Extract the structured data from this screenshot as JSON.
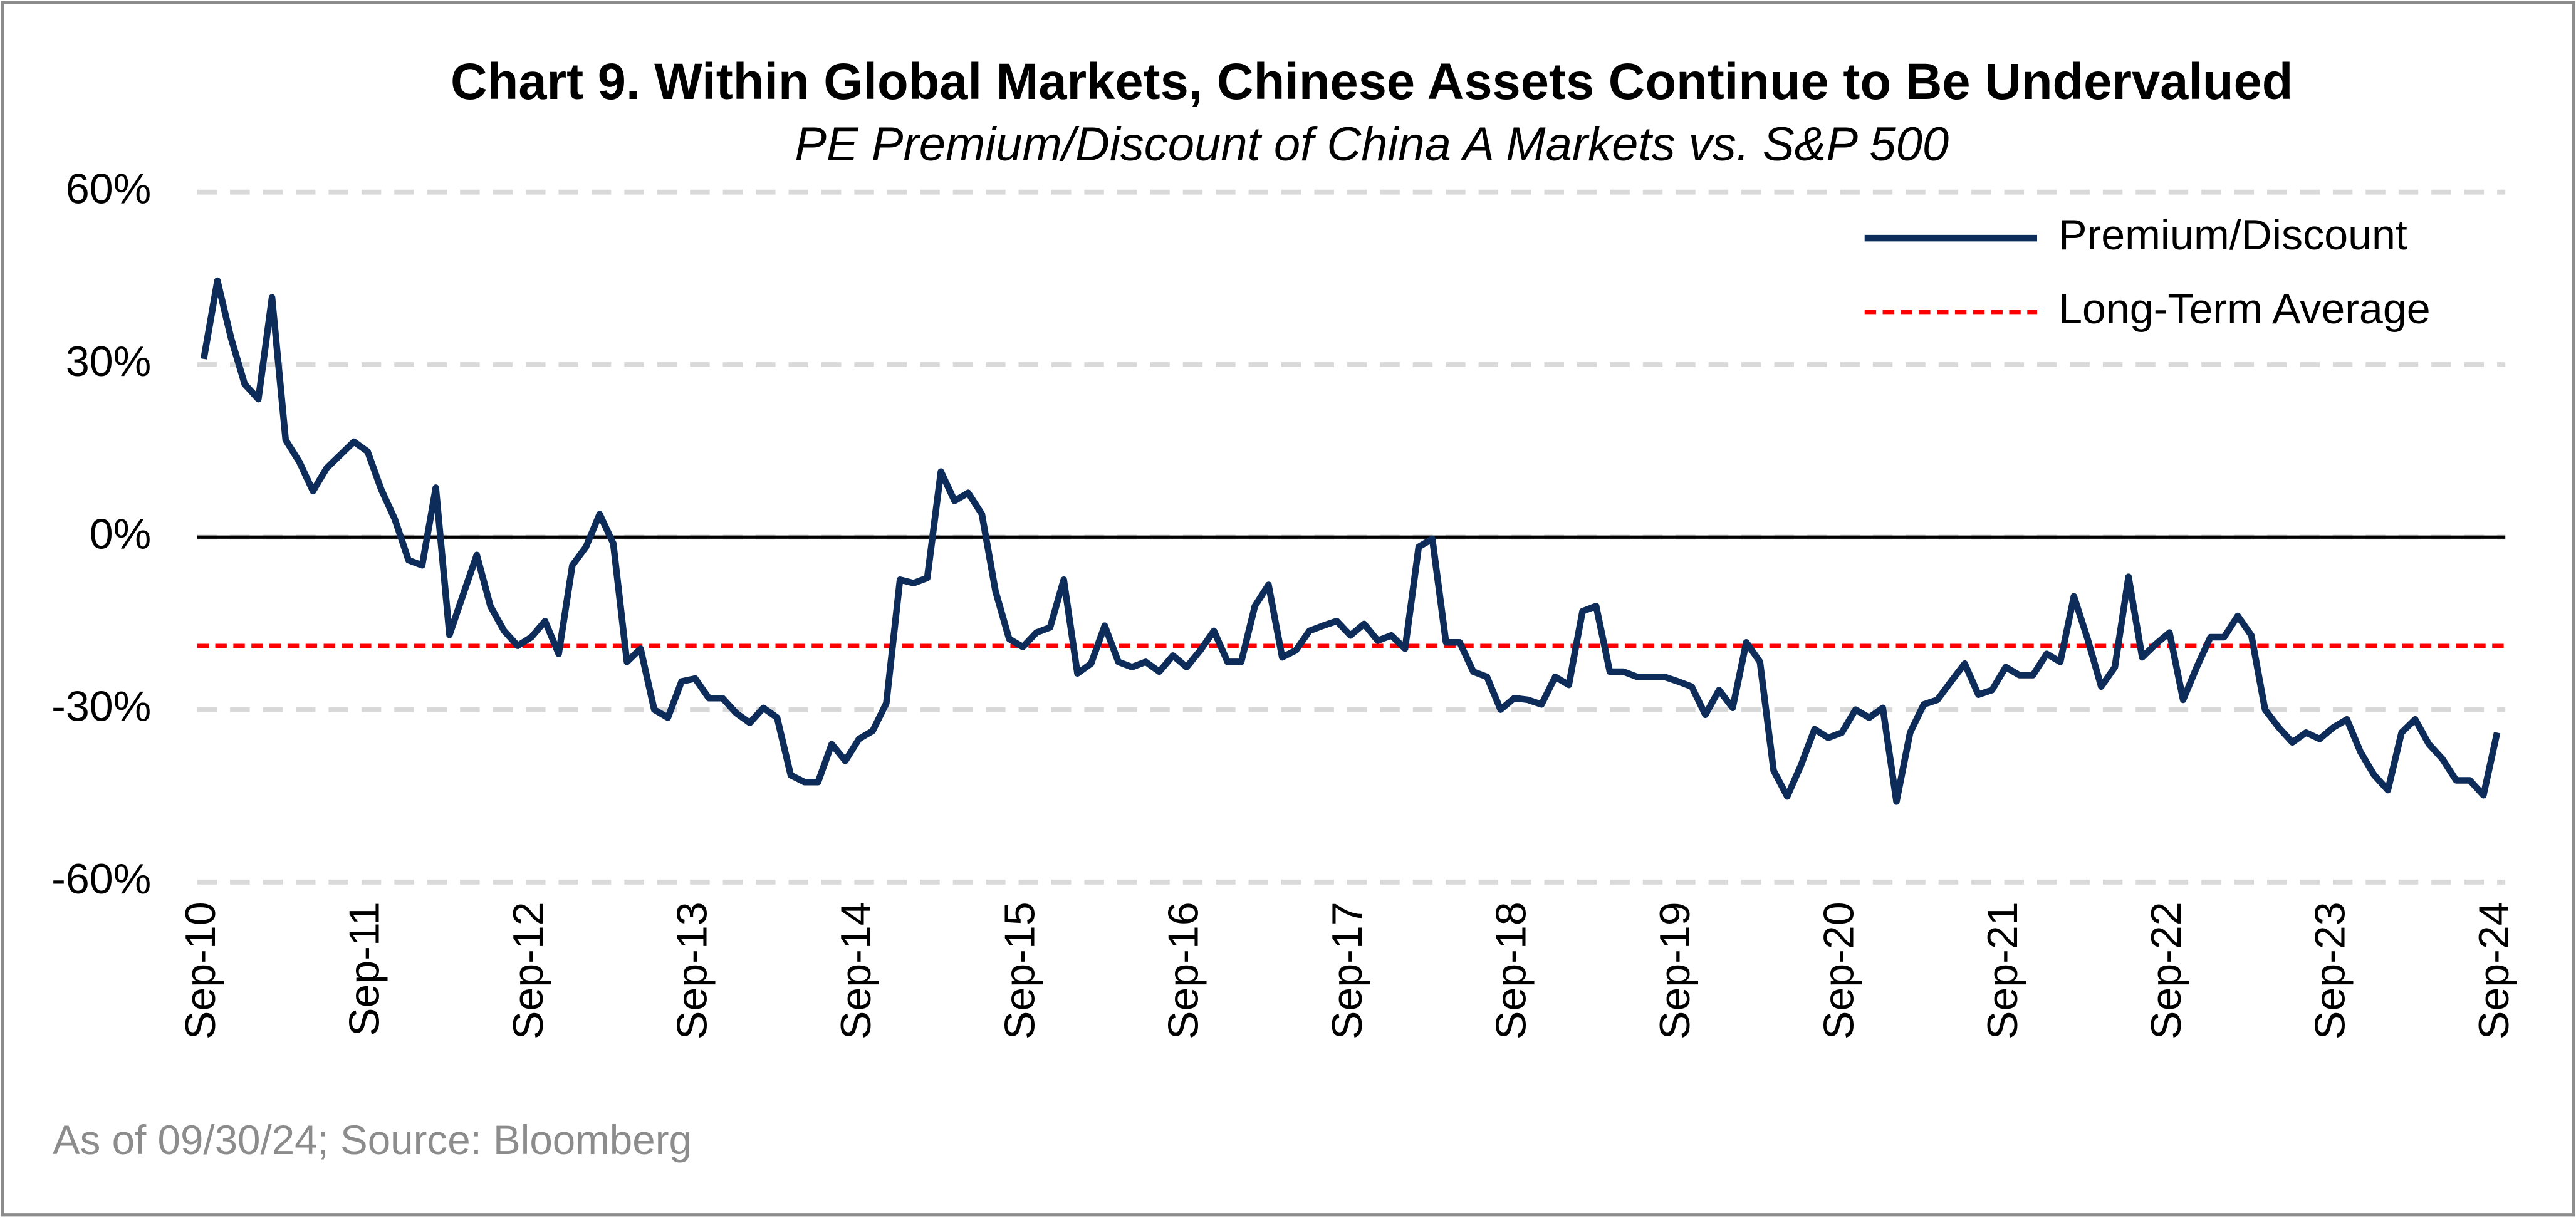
{
  "chart_data": {
    "type": "line",
    "title": "Chart 9. Within Global Markets, Chinese Assets Continue to Be Undervalued",
    "subtitle": "PE Premium/Discount of China A Markets vs. S&P 500",
    "note": "As of 09/30/24; Source:  Bloomberg",
    "categories": [
      "Sep-10",
      null,
      null,
      null,
      null,
      null,
      null,
      null,
      null,
      null,
      null,
      null,
      "Sep-11",
      null,
      null,
      null,
      null,
      null,
      null,
      null,
      null,
      null,
      null,
      null,
      "Sep-12",
      null,
      null,
      null,
      null,
      null,
      null,
      null,
      null,
      null,
      null,
      null,
      "Sep-13",
      null,
      null,
      null,
      null,
      null,
      null,
      null,
      null,
      null,
      null,
      null,
      "Sep-14",
      null,
      null,
      null,
      null,
      null,
      null,
      null,
      null,
      null,
      null,
      null,
      "Sep-15",
      null,
      null,
      null,
      null,
      null,
      null,
      null,
      null,
      null,
      null,
      null,
      "Sep-16",
      null,
      null,
      null,
      null,
      null,
      null,
      null,
      null,
      null,
      null,
      null,
      "Sep-17",
      null,
      null,
      null,
      null,
      null,
      null,
      null,
      null,
      null,
      null,
      null,
      "Sep-18",
      null,
      null,
      null,
      null,
      null,
      null,
      null,
      null,
      null,
      null,
      null,
      "Sep-19",
      null,
      null,
      null,
      null,
      null,
      null,
      null,
      null,
      null,
      null,
      null,
      "Sep-20",
      null,
      null,
      null,
      null,
      null,
      null,
      null,
      null,
      null,
      null,
      null,
      "Sep-21",
      null,
      null,
      null,
      null,
      null,
      null,
      null,
      null,
      null,
      null,
      null,
      "Sep-22",
      null,
      null,
      null,
      null,
      null,
      null,
      null,
      null,
      null,
      null,
      null,
      "Sep-23",
      null,
      null,
      null,
      null,
      null,
      null,
      null,
      null,
      null,
      null,
      null,
      "Sep-24"
    ],
    "series": [
      {
        "name": "Premium/Discount",
        "color": "#0d2c5a",
        "values": [
          31,
          44.6,
          34.6,
          26.6,
          24,
          41.7,
          16.9,
          13.1,
          8,
          12,
          14.3,
          16.6,
          14.9,
          8.3,
          3.1,
          -4,
          -4.9,
          8.6,
          -17,
          -10,
          -3.1,
          -12,
          -16.3,
          -18.9,
          -17.4,
          -14.6,
          -20.3,
          -4.9,
          -1.7,
          4,
          -1.1,
          -21.7,
          -19.4,
          -30,
          -31.4,
          -25.1,
          -24.6,
          -28,
          -28,
          -30.6,
          -32.3,
          -29.7,
          -31.4,
          -41.4,
          -42.6,
          -42.6,
          -36,
          -38.9,
          -35.1,
          -33.7,
          -28.9,
          -7.4,
          -8,
          -7.1,
          11.4,
          6.3,
          7.7,
          4,
          -9.4,
          -17.7,
          -19.1,
          -16.6,
          -15.7,
          -7.4,
          -23.7,
          -22,
          -15.4,
          -21.7,
          -22.6,
          -21.7,
          -23.4,
          -20.6,
          -22.6,
          -19.7,
          -16.3,
          -21.7,
          -21.7,
          -12,
          -8.3,
          -20.9,
          -19.7,
          -16.3,
          -15.4,
          -14.6,
          -17.1,
          -15.1,
          -18,
          -17.1,
          -19.4,
          -1.7,
          -0.3,
          -18.3,
          -18.3,
          -23.4,
          -24.3,
          -30,
          -28,
          -28.3,
          -29.1,
          -24.3,
          -25.7,
          -12.9,
          -12,
          -23.4,
          -23.4,
          -24.3,
          -24.3,
          -24.3,
          -25.1,
          -26,
          -30.9,
          -26.6,
          -29.7,
          -18.3,
          -21.7,
          -40.6,
          -45.1,
          -39.7,
          -33.4,
          -34.9,
          -34,
          -30,
          -31.4,
          -29.7,
          -46,
          -34,
          -29.1,
          -28.3,
          -25.1,
          -22,
          -27.4,
          -26.6,
          -22.6,
          -24,
          -24,
          -20.3,
          -21.7,
          -10.3,
          -17.7,
          -26,
          -22.6,
          -6.9,
          -20.9,
          -18.6,
          -16.6,
          -28.3,
          -22.6,
          -17.4,
          -17.4,
          -13.7,
          -17.1,
          -30,
          -33.1,
          -35.7,
          -34,
          -35.1,
          -33.1,
          -31.7,
          -37.4,
          -41.4,
          -44,
          -34,
          -31.7,
          -36,
          -38.6,
          -42.3,
          -42.3,
          -44.9,
          -34
        ]
      }
    ],
    "average": {
      "name": "Long-Term Average",
      "value": -18.9,
      "color": "#ff0000",
      "dashed": true
    },
    "ylim": [
      -60,
      60
    ],
    "yticks": [
      {
        "value": -60,
        "label": "-60%"
      },
      {
        "value": -30,
        "label": "-30%"
      },
      {
        "value": 0,
        "label": "0%"
      },
      {
        "value": 30,
        "label": "30%"
      },
      {
        "value": 60,
        "label": "60%"
      }
    ],
    "grid": true,
    "legend": "top-right"
  }
}
